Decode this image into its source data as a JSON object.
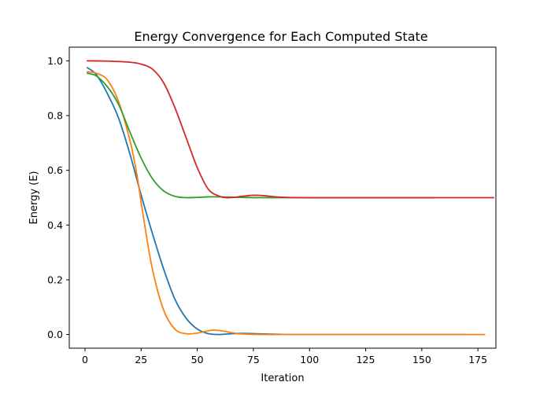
{
  "chart_data": {
    "type": "line",
    "title": "Energy Convergence for Each Computed State",
    "xlabel": "Iteration",
    "ylabel": "Energy (E)",
    "xlim": [
      -7,
      183
    ],
    "ylim": [
      -0.05,
      1.05
    ],
    "xticks": [
      0,
      25,
      50,
      75,
      100,
      125,
      150,
      175
    ],
    "yticks": [
      0.0,
      0.2,
      0.4,
      0.6,
      0.8,
      1.0
    ],
    "ytick_labels": [
      "0.0",
      "0.2",
      "0.4",
      "0.6",
      "0.8",
      "1.0"
    ],
    "grid": false,
    "series": [
      {
        "color": "#1f77b4",
        "x": [
          1,
          5,
          10,
          15,
          20,
          25,
          30,
          35,
          40,
          45,
          50,
          55,
          60,
          65,
          70,
          80,
          90,
          100,
          120,
          140,
          160,
          170
        ],
        "y": [
          0.975,
          0.95,
          0.88,
          0.79,
          0.66,
          0.51,
          0.37,
          0.24,
          0.13,
          0.06,
          0.02,
          0.003,
          0.0,
          0.003,
          0.004,
          0.002,
          0.0,
          0.0,
          0.0,
          0.0,
          0.0,
          0.0
        ]
      },
      {
        "color": "#ff7f0e",
        "x": [
          1,
          5,
          10,
          15,
          20,
          23,
          26,
          30,
          35,
          40,
          45,
          50,
          55,
          58,
          62,
          66,
          70,
          80,
          100,
          120,
          140,
          160,
          178
        ],
        "y": [
          0.96,
          0.955,
          0.93,
          0.85,
          0.71,
          0.59,
          0.43,
          0.24,
          0.09,
          0.02,
          0.003,
          0.005,
          0.014,
          0.016,
          0.012,
          0.006,
          0.002,
          0.0,
          0.0,
          0.0,
          0.0,
          0.0,
          0.0
        ]
      },
      {
        "color": "#2ca02c",
        "x": [
          1,
          5,
          10,
          15,
          20,
          25,
          30,
          35,
          40,
          45,
          50,
          55,
          60,
          70,
          80,
          100,
          120,
          140,
          155
        ],
        "y": [
          0.955,
          0.945,
          0.905,
          0.84,
          0.74,
          0.645,
          0.57,
          0.525,
          0.505,
          0.5,
          0.501,
          0.503,
          0.503,
          0.501,
          0.5,
          0.5,
          0.5,
          0.5,
          0.5
        ]
      },
      {
        "color": "#d62728",
        "x": [
          1,
          10,
          20,
          25,
          30,
          35,
          40,
          45,
          50,
          55,
          60,
          63,
          66,
          70,
          75,
          80,
          85,
          90,
          100,
          120,
          140,
          160,
          182
        ],
        "y": [
          1.0,
          0.999,
          0.995,
          0.988,
          0.97,
          0.92,
          0.83,
          0.72,
          0.61,
          0.53,
          0.505,
          0.5,
          0.501,
          0.505,
          0.509,
          0.507,
          0.503,
          0.501,
          0.5,
          0.5,
          0.5,
          0.5,
          0.5
        ]
      }
    ]
  }
}
